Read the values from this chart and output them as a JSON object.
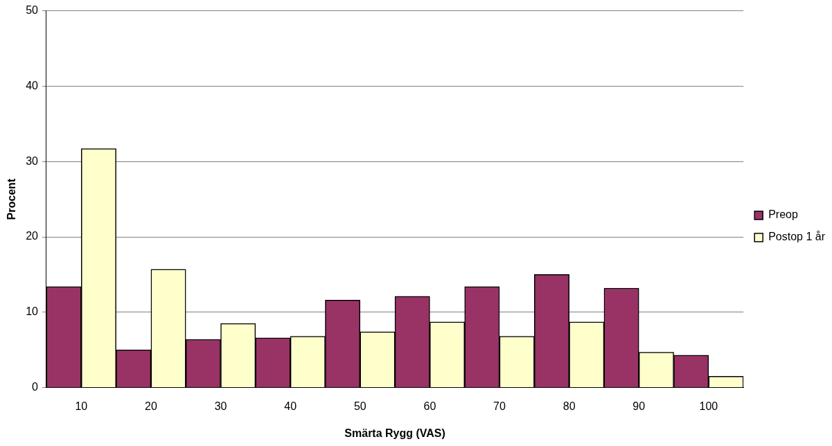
{
  "chart_data": {
    "type": "bar",
    "xlabel": "Smärta Rygg (VAS)",
    "ylabel": "Procent",
    "categories": [
      "10",
      "20",
      "30",
      "40",
      "50",
      "60",
      "70",
      "80",
      "90",
      "100"
    ],
    "series": [
      {
        "name": "Preop",
        "color": "#993366",
        "values": [
          13.4,
          5.0,
          6.4,
          6.6,
          11.6,
          12.1,
          13.4,
          15.0,
          13.2,
          4.3
        ]
      },
      {
        "name": "Postop 1 år",
        "color": "#ffffcc",
        "values": [
          31.7,
          15.7,
          8.5,
          6.8,
          7.4,
          8.7,
          6.8,
          8.7,
          4.7,
          1.5
        ]
      }
    ],
    "ylim": [
      0,
      50
    ],
    "yticks": [
      0,
      10,
      20,
      30,
      40,
      50
    ],
    "grid": "y",
    "legend": "right"
  }
}
